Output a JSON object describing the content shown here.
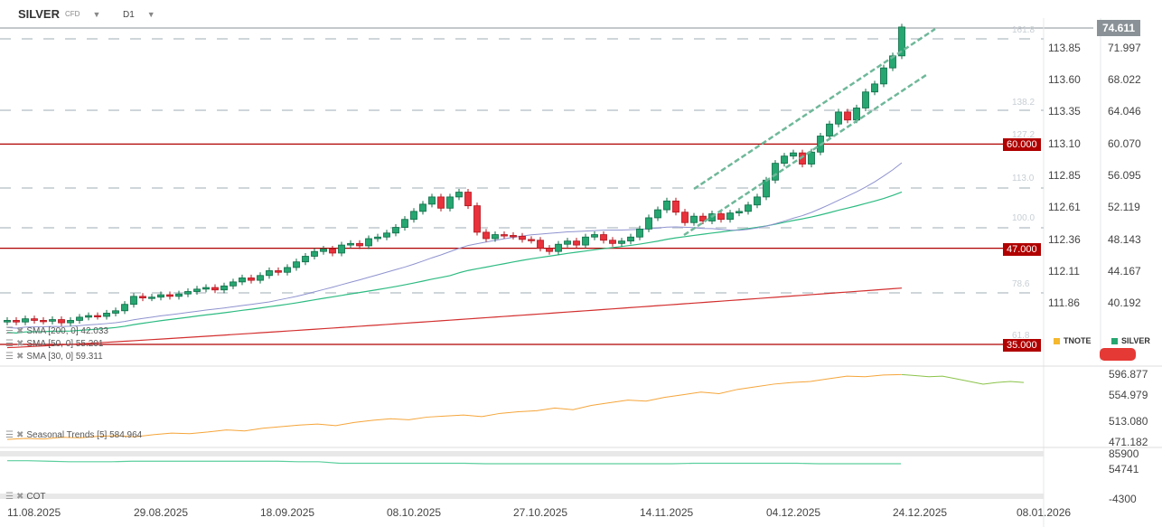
{
  "header": {
    "symbol": "SILVER",
    "symbol_type": "CFD",
    "timeframe": "D1"
  },
  "current_price": "74.611",
  "axis_tnote": [
    "113.85",
    "113.60",
    "113.35",
    "113.10",
    "112.85",
    "112.61",
    "112.36",
    "112.11",
    "111.86"
  ],
  "axis_silver": [
    "71.997",
    "68.022",
    "64.046",
    "60.070",
    "56.095",
    "52.119",
    "48.143",
    "44.167",
    "40.192"
  ],
  "fib_levels": [
    "161.8",
    "138.2",
    "127.2",
    "113.0",
    "100.0",
    "78.6",
    "61.8"
  ],
  "price_alerts": [
    "60.000",
    "47.000",
    "35.000"
  ],
  "legend": {
    "tnote": "TNOTE",
    "silver": "SILVER",
    "tnote_color": "#f5b82e",
    "silver_color": "#26a671"
  },
  "indicators": {
    "sma200": "SMA [200,  0] 42.033",
    "sma50": "SMA [50,  0] 55.201",
    "sma30": "SMA [30,  0] 59.311",
    "seasonal": "Seasonal  Trends  [5]  584.964",
    "cot": "COT"
  },
  "seasonal_axis": [
    "596.877",
    "554.979",
    "513.080",
    "471.182"
  ],
  "cot_axis": [
    "85900",
    "54741",
    "-4300"
  ],
  "dates": [
    "11.08.2025",
    "29.08.2025",
    "18.09.2025",
    "08.10.2025",
    "27.10.2025",
    "14.11.2025",
    "04.12.2025",
    "24.12.2025",
    "08.01.2026"
  ],
  "chart_data": {
    "type": "candlestick",
    "title": "SILVER CFD D1",
    "ylim": [
      35,
      75
    ],
    "closes": [
      38.0,
      37.8,
      38.2,
      38.0,
      37.9,
      38.1,
      37.7,
      38.0,
      38.4,
      38.6,
      38.5,
      38.9,
      39.2,
      40.0,
      41.0,
      40.8,
      40.9,
      41.2,
      41.0,
      41.3,
      41.6,
      41.9,
      42.1,
      41.8,
      42.3,
      42.8,
      43.3,
      43.0,
      43.6,
      44.2,
      44.0,
      44.6,
      45.3,
      46.0,
      46.6,
      46.9,
      46.4,
      47.4,
      47.6,
      47.3,
      48.2,
      48.4,
      48.9,
      49.6,
      50.6,
      51.6,
      52.5,
      53.4,
      52.0,
      53.4,
      54.0,
      52.3,
      49.0,
      48.2,
      48.7,
      48.6,
      48.5,
      48.1,
      48.0,
      47.0,
      46.6,
      47.5,
      47.9,
      47.4,
      48.4,
      48.7,
      48.0,
      47.6,
      47.9,
      48.4,
      49.4,
      50.8,
      51.8,
      52.9,
      51.5,
      50.2,
      51.0,
      50.4,
      51.3,
      50.6,
      51.4,
      51.6,
      52.4,
      53.4,
      55.5,
      57.6,
      58.5,
      58.9,
      57.5,
      59.0,
      61.0,
      62.5,
      64.0,
      63.0,
      64.5,
      66.5,
      67.5,
      69.5,
      71.0,
      74.6
    ],
    "sma200_range": [
      34.6,
      42.033
    ],
    "horizontal_levels": [
      60,
      47,
      35
    ],
    "seasonal": [
      476,
      478,
      477,
      480,
      479,
      482,
      483,
      481,
      485,
      488,
      487,
      490,
      494,
      492,
      497,
      500,
      503,
      505,
      502,
      508,
      512,
      515,
      513,
      518,
      520,
      522,
      519,
      525,
      528,
      530,
      535,
      532,
      540,
      545,
      550,
      548,
      555,
      560,
      565,
      562,
      570,
      575,
      580,
      583,
      585,
      590,
      595,
      594,
      597,
      598
    ],
    "seasonal_forward": [
      598,
      596,
      594,
      595,
      590,
      585,
      580,
      583,
      585,
      583
    ],
    "cot": [
      72000,
      72000,
      71000,
      70000,
      70000,
      70000,
      71000,
      71000,
      71000,
      71000,
      71000,
      71000,
      71000,
      71000,
      70000,
      70000,
      67000,
      67000,
      67000,
      67000,
      67000,
      67000,
      67000,
      66000,
      66000,
      66000,
      66000,
      66000,
      66000,
      66000,
      66000,
      66000,
      66000,
      67000,
      67000,
      67000,
      67000,
      67000,
      67000,
      66000,
      66000,
      66000,
      66000,
      66000
    ]
  }
}
